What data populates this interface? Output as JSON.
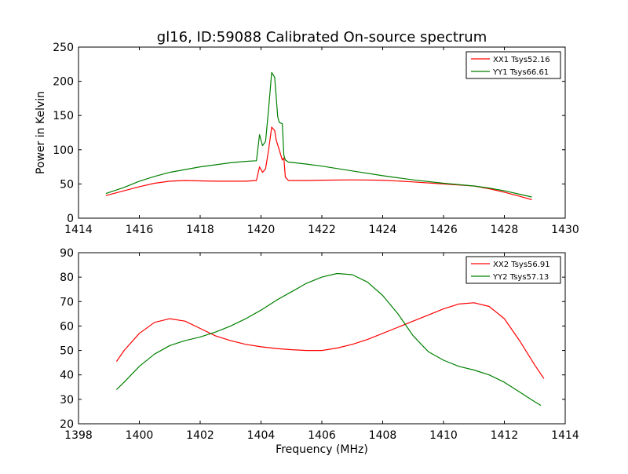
{
  "figure": {
    "title": "gl16, ID:59088 Calibrated On-source spectrum",
    "xlabel": "Frequency (MHz)"
  },
  "colors": {
    "red": "#ff0000",
    "green": "#008000",
    "axis": "#000000"
  },
  "chart_data": [
    {
      "type": "line",
      "title": "gl16, ID:59088 Calibrated On-source spectrum",
      "xlabel": "",
      "ylabel": "Power in Kelvin",
      "xlim": [
        1414,
        1430
      ],
      "ylim": [
        0,
        250
      ],
      "xticks": [
        1414,
        1416,
        1418,
        1420,
        1422,
        1424,
        1426,
        1428,
        1430
      ],
      "yticks": [
        0,
        50,
        100,
        150,
        200,
        250
      ],
      "legend_position": "top-right",
      "grid": false,
      "series": [
        {
          "name": "XX1 Tsys52.16",
          "color": "#ff0000",
          "x": [
            1414.9,
            1415.5,
            1416,
            1416.5,
            1417,
            1417.5,
            1418,
            1418.5,
            1419,
            1419.5,
            1419.85,
            1419.95,
            1420.05,
            1420.15,
            1420.25,
            1420.35,
            1420.45,
            1420.5,
            1420.6,
            1420.7,
            1420.75,
            1420.8,
            1420.9,
            1421.5,
            1422,
            1423,
            1424,
            1425,
            1426,
            1427,
            1427.5,
            1428,
            1428.5,
            1428.9
          ],
          "y": [
            33,
            40,
            46,
            51,
            54,
            55,
            54.5,
            54,
            54,
            54,
            55,
            75,
            67,
            72,
            100,
            133,
            128,
            114,
            100,
            85,
            88,
            60,
            55,
            55,
            55.5,
            56,
            55.5,
            53,
            50,
            47,
            43,
            38,
            32,
            27
          ]
        },
        {
          "name": "YY1 Tsys66.61",
          "color": "#008000",
          "x": [
            1414.9,
            1415.5,
            1416,
            1416.5,
            1417,
            1417.5,
            1418,
            1418.5,
            1419,
            1419.5,
            1419.85,
            1419.95,
            1420.05,
            1420.15,
            1420.25,
            1420.35,
            1420.45,
            1420.55,
            1420.6,
            1420.7,
            1420.75,
            1420.8,
            1420.9,
            1421.5,
            1422,
            1423,
            1424,
            1425,
            1426,
            1427,
            1427.5,
            1428,
            1428.5,
            1428.9
          ],
          "y": [
            36,
            45,
            54,
            61,
            67,
            71,
            75,
            78,
            81,
            83,
            84,
            122,
            106,
            112,
            160,
            213,
            206,
            148,
            140,
            138,
            92,
            85,
            82,
            79,
            76,
            69,
            62,
            56,
            51,
            47,
            44,
            40,
            35,
            31
          ]
        }
      ]
    },
    {
      "type": "line",
      "xlabel": "Frequency (MHz)",
      "ylabel": "",
      "xlim": [
        1398,
        1414
      ],
      "ylim": [
        20,
        90
      ],
      "xticks": [
        1398,
        1400,
        1402,
        1404,
        1406,
        1408,
        1410,
        1412,
        1414
      ],
      "yticks": [
        20,
        30,
        40,
        50,
        60,
        70,
        80,
        90
      ],
      "legend_position": "top-right",
      "grid": false,
      "series": [
        {
          "name": "XX2 Tsys56.91",
          "color": "#ff0000",
          "x": [
            1399.25,
            1399.5,
            1400,
            1400.5,
            1401,
            1401.5,
            1402,
            1402.5,
            1403,
            1403.5,
            1404,
            1404.5,
            1405,
            1405.5,
            1406,
            1406.5,
            1407,
            1407.5,
            1408,
            1408.5,
            1409,
            1409.5,
            1410,
            1410.5,
            1411,
            1411.5,
            1412,
            1412.5,
            1413,
            1413.3
          ],
          "y": [
            45.5,
            50,
            57,
            61.5,
            63,
            62,
            59,
            56,
            54,
            52.5,
            51.5,
            50.8,
            50.3,
            50,
            50,
            51,
            52.5,
            54.5,
            57,
            59.5,
            62,
            64.5,
            67,
            69,
            69.5,
            68,
            63,
            54,
            44,
            38.5
          ]
        },
        {
          "name": "YY2 Tsys57.13",
          "color": "#008000",
          "x": [
            1399.25,
            1399.5,
            1400,
            1400.5,
            1401,
            1401.5,
            1402,
            1402.5,
            1403,
            1403.5,
            1404,
            1404.5,
            1405,
            1405.5,
            1406,
            1406.5,
            1407,
            1407.5,
            1408,
            1408.5,
            1409,
            1409.5,
            1410,
            1410.5,
            1411,
            1411.5,
            1412,
            1412.5,
            1413,
            1413.2
          ],
          "y": [
            34,
            37,
            43.5,
            48.5,
            52,
            54,
            55.5,
            57.5,
            60,
            63,
            66.5,
            70.5,
            74,
            77.5,
            80,
            81.5,
            81,
            78,
            72.5,
            65,
            56,
            49.5,
            46,
            43.5,
            42,
            40,
            37,
            33,
            29,
            27.5
          ]
        }
      ]
    }
  ]
}
